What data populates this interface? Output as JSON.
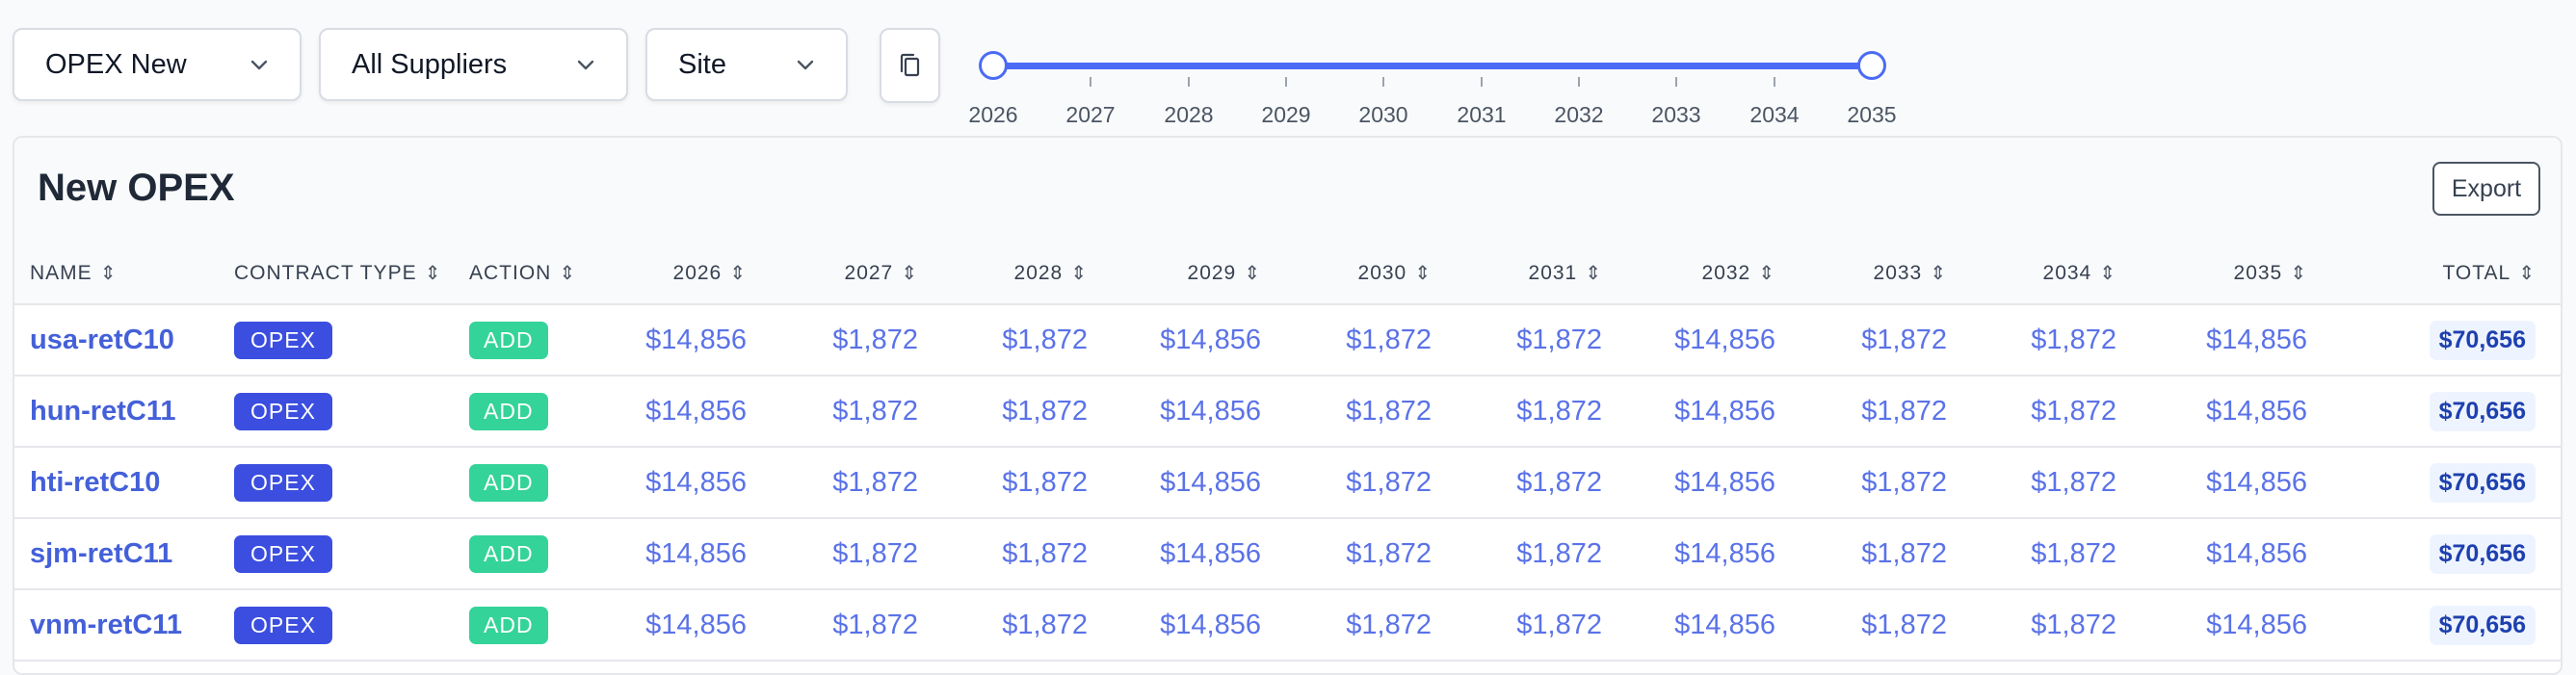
{
  "filters": {
    "scenario": {
      "value": "OPEX New",
      "icon": "chevron-down-icon"
    },
    "supplier": {
      "value": "All Suppliers",
      "icon": "chevron-down-icon"
    },
    "site": {
      "value": "Site",
      "icon": "chevron-down-icon"
    },
    "copy_icon": "copy-icon"
  },
  "year_range": {
    "years": [
      "2026",
      "2027",
      "2028",
      "2029",
      "2030",
      "2031",
      "2032",
      "2033",
      "2034",
      "2035"
    ],
    "selected_start": "2026",
    "selected_end": "2035",
    "accent_color": "#4b6bf5"
  },
  "panel": {
    "title": "New OPEX",
    "export_label": "Export"
  },
  "table": {
    "sort_icon": "sort-icon",
    "columns": [
      "NAME",
      "CONTRACT TYPE",
      "ACTION",
      "2026",
      "2027",
      "2028",
      "2029",
      "2030",
      "2031",
      "2032",
      "2033",
      "2034",
      "2035",
      "TOTAL"
    ],
    "rows": [
      {
        "name": "usa-retC10",
        "contract_type": "OPEX",
        "action": "ADD",
        "values": [
          "$14,856",
          "$1,872",
          "$1,872",
          "$14,856",
          "$1,872",
          "$1,872",
          "$14,856",
          "$1,872",
          "$1,872",
          "$14,856"
        ],
        "total": "$70,656"
      },
      {
        "name": "hun-retC11",
        "contract_type": "OPEX",
        "action": "ADD",
        "values": [
          "$14,856",
          "$1,872",
          "$1,872",
          "$14,856",
          "$1,872",
          "$1,872",
          "$14,856",
          "$1,872",
          "$1,872",
          "$14,856"
        ],
        "total": "$70,656"
      },
      {
        "name": "hti-retC10",
        "contract_type": "OPEX",
        "action": "ADD",
        "values": [
          "$14,856",
          "$1,872",
          "$1,872",
          "$14,856",
          "$1,872",
          "$1,872",
          "$14,856",
          "$1,872",
          "$1,872",
          "$14,856"
        ],
        "total": "$70,656"
      },
      {
        "name": "sjm-retC11",
        "contract_type": "OPEX",
        "action": "ADD",
        "values": [
          "$14,856",
          "$1,872",
          "$1,872",
          "$14,856",
          "$1,872",
          "$1,872",
          "$14,856",
          "$1,872",
          "$1,872",
          "$14,856"
        ],
        "total": "$70,656"
      },
      {
        "name": "vnm-retC11",
        "contract_type": "OPEX",
        "action": "ADD",
        "values": [
          "$14,856",
          "$1,872",
          "$1,872",
          "$14,856",
          "$1,872",
          "$1,872",
          "$14,856",
          "$1,872",
          "$1,872",
          "$14,856"
        ],
        "total": "$70,656"
      }
    ]
  },
  "colors": {
    "contract_badge": "#3b4ee0",
    "action_badge": "#34d399",
    "link_text": "#4460d9",
    "total_bg": "#eef4ff"
  }
}
